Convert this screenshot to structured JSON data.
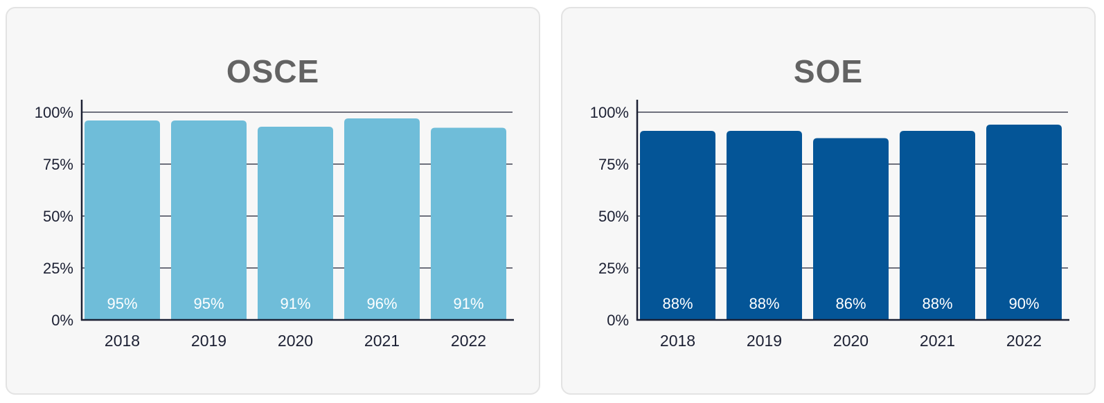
{
  "chart_data": [
    {
      "type": "bar",
      "title": "OSCE",
      "categories": [
        "2018",
        "2019",
        "2020",
        "2021",
        "2022"
      ],
      "values": [
        95,
        95,
        91,
        96,
        91
      ],
      "data_labels": [
        "95%",
        "95%",
        "91%",
        "96%",
        "91%"
      ],
      "bar_heights_pct": [
        96,
        96,
        93,
        97,
        92.5
      ],
      "yticks": [
        "0%",
        "25%",
        "50%",
        "75%",
        "100%"
      ],
      "ylim": [
        0,
        100
      ],
      "grid": true,
      "legend": "none",
      "bar_color": "#6fbdd9"
    },
    {
      "type": "bar",
      "title": "SOE",
      "categories": [
        "2018",
        "2019",
        "2020",
        "2021",
        "2022"
      ],
      "values": [
        88,
        88,
        86,
        88,
        90
      ],
      "data_labels": [
        "88%",
        "88%",
        "86%",
        "88%",
        "90%"
      ],
      "bar_heights_pct": [
        91,
        91,
        87.5,
        91,
        94
      ],
      "yticks": [
        "0%",
        "25%",
        "50%",
        "75%",
        "100%"
      ],
      "ylim": [
        0,
        100
      ],
      "grid": true,
      "legend": "none",
      "bar_color": "#045597"
    }
  ],
  "colors": {
    "axis": "#1c2033",
    "grid": "#1c2033",
    "panel_bg": "#f7f7f7",
    "panel_border": "#e3e3e3",
    "title": "#636363"
  }
}
